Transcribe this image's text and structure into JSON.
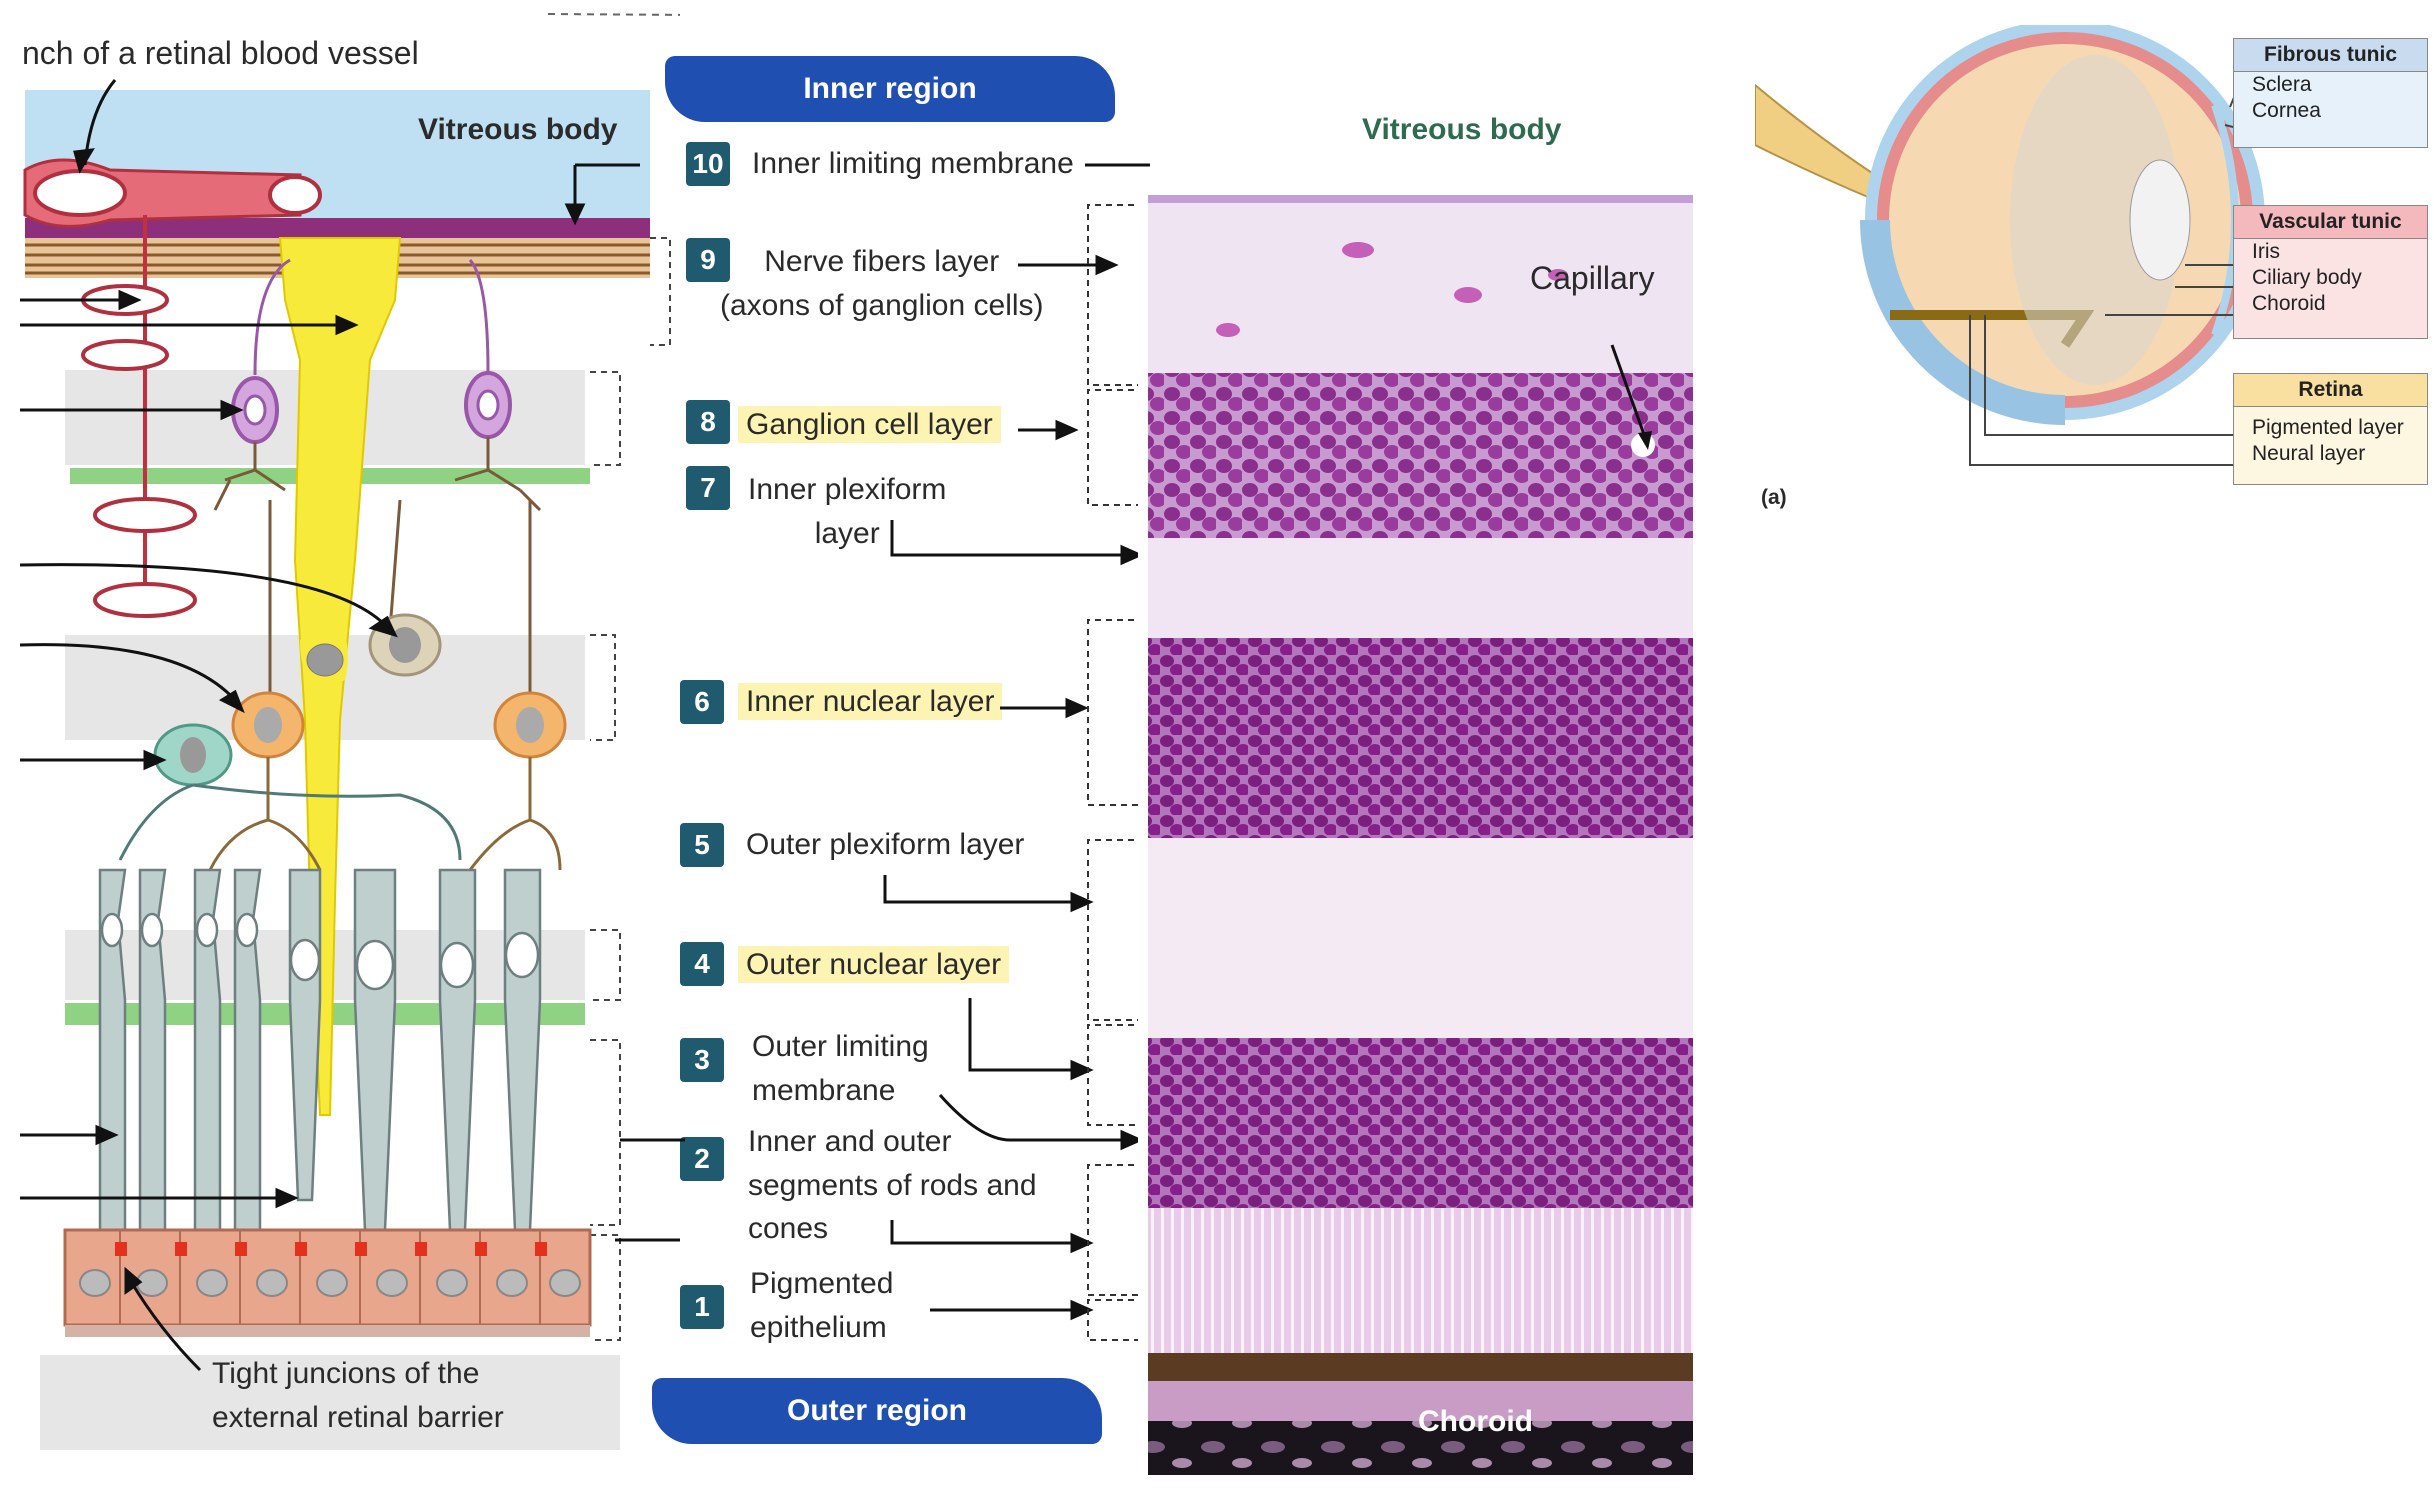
{
  "left_diagram": {
    "vessel_label": "nch of a retinal blood vessel",
    "vitreous_label": "Vitreous body",
    "tight_junctions_label_line1": "Tight juncions of the",
    "tight_junctions_label_line2": "external retinal barrier"
  },
  "regions": {
    "inner": "Inner region",
    "outer": "Outer region"
  },
  "layers": [
    {
      "num": "10",
      "line1": "Inner limiting membrane",
      "line2": ""
    },
    {
      "num": "9",
      "line1": "Nerve fibers layer",
      "line2": "(axons of ganglion cells)"
    },
    {
      "num": "8",
      "line1": "Ganglion cell layer",
      "line2": ""
    },
    {
      "num": "7",
      "line1": "Inner plexiform",
      "line2": "layer"
    },
    {
      "num": "6",
      "line1": "Inner nuclear layer",
      "line2": ""
    },
    {
      "num": "5",
      "line1": "Outer plexiform layer",
      "line2": ""
    },
    {
      "num": "4",
      "line1": "Outer nuclear layer",
      "line2": ""
    },
    {
      "num": "3",
      "line1": "Outer limiting",
      "line2": "membrane"
    },
    {
      "num": "2",
      "line1": "Inner and outer",
      "line2": "segments of rods and",
      "line3": "cones"
    },
    {
      "num": "1",
      "line1": "Pigmented",
      "line2": "epithelium"
    }
  ],
  "micrograph": {
    "vitreous_label": "Vitreous body",
    "capillary_label": "Capillary",
    "choroid_label": "Choroid"
  },
  "eye_diagram": {
    "panel_label": "(a)",
    "fibrous": {
      "title": "Fibrous tunic",
      "items": [
        "Sclera",
        "Cornea"
      ],
      "color": "#c9dcef"
    },
    "vascular": {
      "title": "Vascular tunic",
      "items": [
        "Iris",
        "Ciliary body",
        "Choroid"
      ],
      "color": "#f3b9bc"
    },
    "retina": {
      "title": "Retina",
      "items": [
        "Pigmented layer",
        "Neural layer"
      ],
      "color": "#f9dfa0"
    }
  }
}
